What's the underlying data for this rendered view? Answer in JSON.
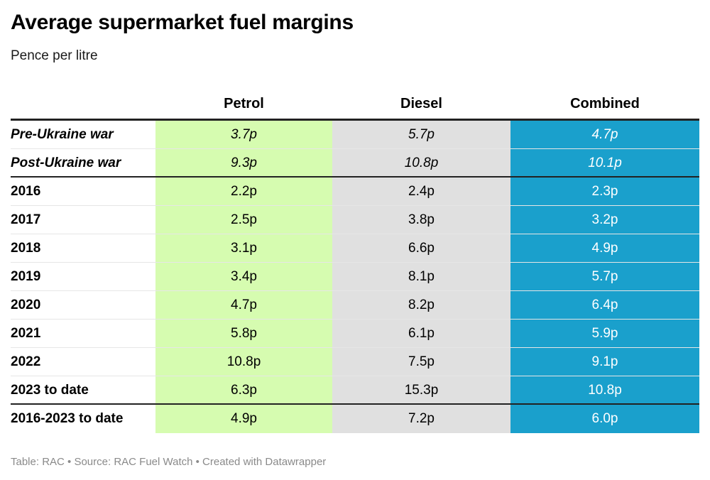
{
  "title": "Average supermarket fuel margins",
  "subtitle": "Pence per litre",
  "footer": "Table: RAC • Source: RAC Fuel Watch • Created with Datawrapper",
  "colors": {
    "petrol": "#d6fcb0",
    "diesel": "#e0e0e0",
    "combined": "#1aa0cc"
  },
  "chart_data": {
    "type": "table",
    "columns": [
      "Petrol",
      "Diesel",
      "Combined"
    ],
    "rows": [
      {
        "label": "Pre-Ukraine war",
        "italic": true,
        "petrol": "3.7p",
        "diesel": "5.7p",
        "combined": "4.7p"
      },
      {
        "label": "Post-Ukraine war",
        "italic": true,
        "petrol": "9.3p",
        "diesel": "10.8p",
        "combined": "10.1p"
      },
      {
        "label": "2016",
        "petrol": "2.2p",
        "diesel": "2.4p",
        "combined": "2.3p"
      },
      {
        "label": "2017",
        "petrol": "2.5p",
        "diesel": "3.8p",
        "combined": "3.2p"
      },
      {
        "label": "2018",
        "petrol": "3.1p",
        "diesel": "6.6p",
        "combined": "4.9p"
      },
      {
        "label": "2019",
        "petrol": "3.4p",
        "diesel": "8.1p",
        "combined": "5.7p"
      },
      {
        "label": "2020",
        "petrol": "4.7p",
        "diesel": "8.2p",
        "combined": "6.4p"
      },
      {
        "label": "2021",
        "petrol": "5.8p",
        "diesel": "6.1p",
        "combined": "5.9p"
      },
      {
        "label": "2022",
        "petrol": "10.8p",
        "diesel": "7.5p",
        "combined": "9.1p"
      },
      {
        "label": "2023 to date",
        "petrol": "6.3p",
        "diesel": "15.3p",
        "combined": "10.8p"
      },
      {
        "label": "2016-2023 to date",
        "petrol": "4.9p",
        "diesel": "7.2p",
        "combined": "6.0p"
      }
    ]
  }
}
